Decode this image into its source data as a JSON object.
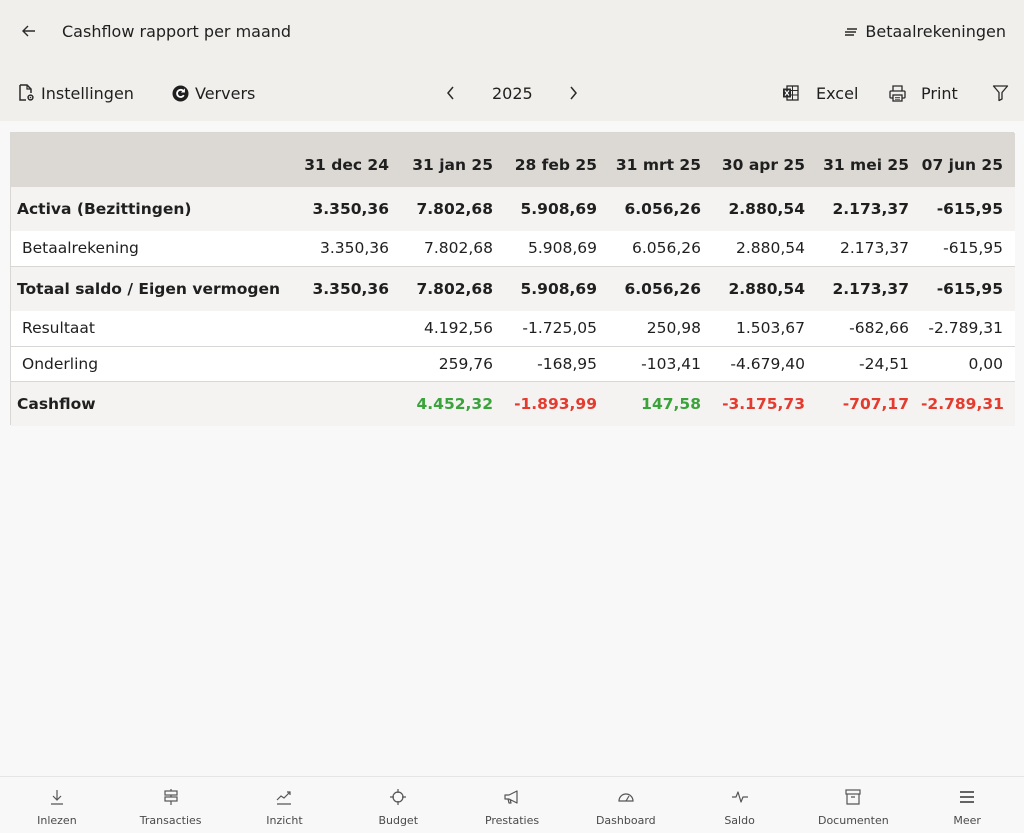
{
  "header": {
    "title": "Cashflow rapport per maand",
    "accounts_label": "Betaalrekeningen"
  },
  "toolbar": {
    "settings_label": "Instellingen",
    "refresh_label": "Ververs",
    "year": "2025",
    "excel_label": "Excel",
    "print_label": "Print"
  },
  "table": {
    "columns": [
      "31 dec 24",
      "31 jan 25",
      "28 feb 25",
      "31 mrt 25",
      "30 apr 25",
      "31 mei 25",
      "07 jun 25"
    ],
    "rows": [
      {
        "label": "Activa (Bezittingen)",
        "values": [
          "3.350,36",
          "7.802,68",
          "5.908,69",
          "6.056,26",
          "2.880,54",
          "2.173,37",
          "-615,95"
        ]
      },
      {
        "label": "Betaalrekening",
        "values": [
          "3.350,36",
          "7.802,68",
          "5.908,69",
          "6.056,26",
          "2.880,54",
          "2.173,37",
          "-615,95"
        ]
      },
      {
        "label": "Totaal saldo / Eigen vermogen",
        "values": [
          "3.350,36",
          "7.802,68",
          "5.908,69",
          "6.056,26",
          "2.880,54",
          "2.173,37",
          "-615,95"
        ]
      },
      {
        "label": "Resultaat",
        "values": [
          "",
          "4.192,56",
          "-1.725,05",
          "250,98",
          "1.503,67",
          "-682,66",
          "-2.789,31"
        ]
      },
      {
        "label": "Onderling",
        "values": [
          "",
          "259,76",
          "-168,95",
          "-103,41",
          "-4.679,40",
          "-24,51",
          "0,00"
        ]
      },
      {
        "label": "Cashflow",
        "values": [
          "",
          "4.452,32",
          "-1.893,99",
          "147,58",
          "-3.175,73",
          "-707,17",
          "-2.789,31"
        ]
      }
    ]
  },
  "colors": {
    "positive": "#3aa33a",
    "negative": "#e53a2e",
    "header_bg": "#dcd9d4"
  },
  "nav": {
    "items": [
      {
        "label": "Inlezen",
        "icon": "download-icon"
      },
      {
        "label": "Transacties",
        "icon": "signpost-icon"
      },
      {
        "label": "Inzicht",
        "icon": "trend-icon"
      },
      {
        "label": "Budget",
        "icon": "crosshair-icon"
      },
      {
        "label": "Prestaties",
        "icon": "megaphone-icon"
      },
      {
        "label": "Dashboard",
        "icon": "gauge-icon"
      },
      {
        "label": "Saldo",
        "icon": "pulse-icon"
      },
      {
        "label": "Documenten",
        "icon": "archive-icon"
      },
      {
        "label": "Meer",
        "icon": "menu-icon"
      }
    ]
  }
}
